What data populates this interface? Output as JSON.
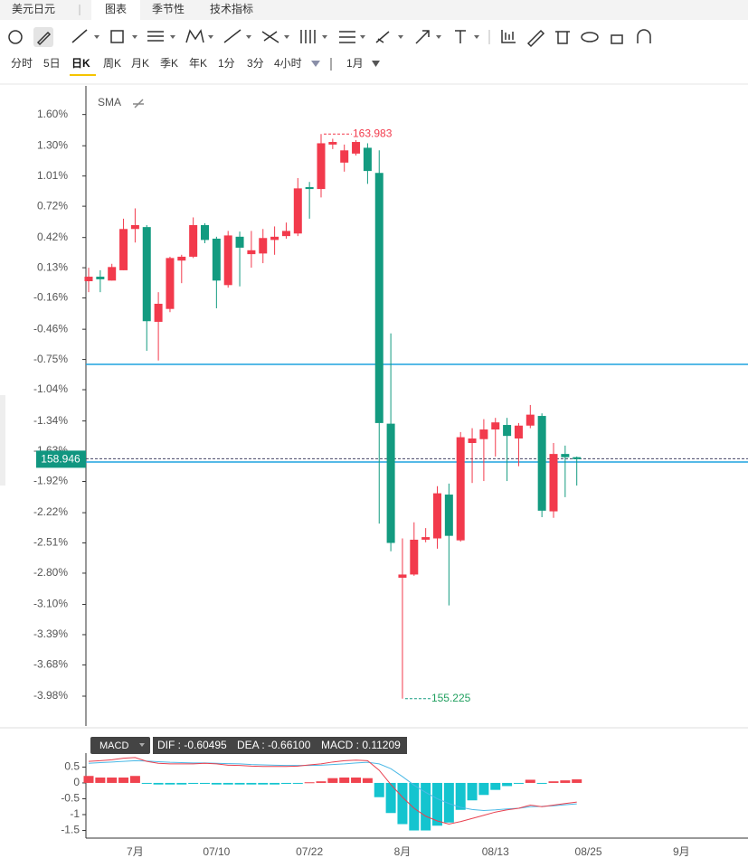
{
  "tabs": {
    "title": "美元日元",
    "items": [
      "图表",
      "季节性",
      "技术指标"
    ],
    "active": 0
  },
  "periods": {
    "items": [
      "分时",
      "5日",
      "日K",
      "周K",
      "月K",
      "季K",
      "年K",
      "1分",
      "3分",
      "4小时"
    ],
    "active": 2,
    "range": "1月"
  },
  "chart_data": [
    {
      "type": "candlestick",
      "indicator": "SMA",
      "categories": [
        null,
        null,
        null,
        null,
        "7月",
        null,
        null,
        null,
        null,
        null,
        null,
        "07/10",
        null,
        null,
        null,
        null,
        null,
        null,
        null,
        "07/22",
        null,
        null,
        null,
        null,
        null,
        null,
        null,
        "8月",
        null,
        null,
        null,
        null,
        null,
        null,
        null,
        "08/13",
        null,
        null,
        null,
        null,
        null,
        null,
        null,
        "08/25",
        null,
        null,
        null,
        null,
        null,
        null,
        null,
        "9月",
        null,
        null,
        null,
        null,
        null
      ],
      "open": [
        161.7,
        161.77,
        161.71,
        161.87,
        162.51,
        162.54,
        161.07,
        161.27,
        162.02,
        162.08,
        162.57,
        162.36,
        161.64,
        162.39,
        162.12,
        162.13,
        162.34,
        162.4,
        162.44,
        163.16,
        163.13,
        163.82,
        163.54,
        163.68,
        163.77,
        163.38,
        159.49,
        157.1,
        157.15,
        157.69,
        157.71,
        158.39,
        157.68,
        159.19,
        159.25,
        159.4,
        159.47,
        159.26,
        159.46,
        159.61,
        158.13,
        159.02,
        158.97,
        null,
        null,
        null,
        null,
        null,
        null,
        null,
        null,
        null,
        null,
        null,
        null,
        null,
        null
      ],
      "high": [
        161.91,
        161.87,
        161.97,
        162.67,
        162.83,
        162.57,
        161.53,
        162.08,
        162.11,
        162.69,
        162.6,
        162.39,
        162.48,
        162.47,
        162.48,
        162.51,
        162.55,
        162.61,
        163.3,
        163.24,
        163.983,
        163.91,
        163.82,
        163.89,
        163.84,
        163.73,
        160.89,
        157.71,
        157.96,
        157.87,
        158.52,
        158.56,
        159.36,
        159.42,
        159.56,
        159.58,
        159.58,
        159.5,
        159.78,
        159.65,
        159.19,
        159.15,
        158.98,
        null,
        null,
        null,
        null,
        null,
        null,
        null,
        null,
        null,
        null,
        null,
        null,
        null,
        null
      ],
      "low": [
        161.53,
        161.53,
        161.71,
        161.87,
        162.3,
        160.62,
        160.47,
        161.22,
        161.67,
        162.06,
        162.29,
        161.28,
        161.6,
        161.62,
        161.91,
        161.98,
        162.11,
        162.36,
        162.4,
        162.67,
        163.0,
        163.75,
        163.4,
        163.65,
        163.21,
        157.94,
        157.51,
        155.225,
        157.13,
        157.65,
        157.55,
        156.67,
        157.66,
        158.57,
        158.6,
        158.98,
        158.6,
        158.83,
        159.42,
        158.04,
        158.03,
        158.35,
        158.53,
        null,
        null,
        null,
        null,
        null,
        null,
        null,
        null,
        null,
        null,
        null,
        null,
        null,
        null
      ],
      "close": [
        161.77,
        161.73,
        161.92,
        162.51,
        162.57,
        161.08,
        161.35,
        162.06,
        162.08,
        162.57,
        162.34,
        161.71,
        162.41,
        162.22,
        162.18,
        162.37,
        162.39,
        162.48,
        163.14,
        163.13,
        163.84,
        163.86,
        163.73,
        163.86,
        163.41,
        159.5,
        157.64,
        157.15,
        157.69,
        157.73,
        158.41,
        157.75,
        159.28,
        159.26,
        159.4,
        159.51,
        159.3,
        159.46,
        159.63,
        158.14,
        159.02,
        158.97,
        158.94,
        null,
        null,
        null,
        null,
        null,
        null,
        null,
        null,
        null,
        null,
        null,
        null,
        null,
        null
      ],
      "up_color": "#f23a4c",
      "down_color": "#139b80",
      "ylim": [
        154.8,
        164.73
      ],
      "yticks": [
        {
          "value": 164.286,
          "label": "1.60%"
        },
        {
          "value": 163.801,
          "label": "1.30%"
        },
        {
          "value": 163.332,
          "label": "1.01%"
        },
        {
          "value": 162.863,
          "label": "0.72%"
        },
        {
          "value": 162.378,
          "label": "0.42%"
        },
        {
          "value": 161.909,
          "label": "0.13%"
        },
        {
          "value": 161.44,
          "label": "-0.16%"
        },
        {
          "value": 160.955,
          "label": "-0.46%"
        },
        {
          "value": 160.486,
          "label": "-0.75%"
        },
        {
          "value": 160.017,
          "label": "-1.04%"
        },
        {
          "value": 159.532,
          "label": "-1.34%"
        },
        {
          "value": 159.063,
          "label": "-1.63%"
        },
        {
          "value": 158.594,
          "label": "-1.92%"
        },
        {
          "value": 158.109,
          "label": "-2.22%"
        },
        {
          "value": 157.64,
          "label": "-2.51%"
        },
        {
          "value": 157.171,
          "label": "-2.80%"
        },
        {
          "value": 156.686,
          "label": "-3.10%"
        },
        {
          "value": 156.217,
          "label": "-3.39%"
        },
        {
          "value": 155.748,
          "label": "-3.68%"
        },
        {
          "value": 155.263,
          "label": "-3.98%"
        }
      ],
      "high_marker": 163.983,
      "low_marker": 155.225,
      "last_price": 158.946,
      "hlines": [
        160.41,
        158.896
      ],
      "hline_color": "#1ea4df"
    },
    {
      "type": "macd",
      "indicator": "MACD",
      "legend": [
        "DIF : -0.60495",
        "DEA : -0.66100",
        "MACD : 0.11209"
      ],
      "dif": {
        "color": "#e8404f",
        "values": [
          0.68,
          0.7,
          0.73,
          0.78,
          0.8,
          0.68,
          0.62,
          0.6,
          0.6,
          0.6,
          0.62,
          0.6,
          0.56,
          0.55,
          0.53,
          0.52,
          0.52,
          0.52,
          0.53,
          0.57,
          0.6,
          0.66,
          0.7,
          0.72,
          0.7,
          0.4,
          -0.05,
          -0.45,
          -0.8,
          -1.05,
          -1.2,
          -1.3,
          -1.22,
          -1.12,
          -1.02,
          -0.92,
          -0.85,
          -0.8,
          -0.7,
          -0.75,
          -0.7,
          -0.65,
          -0.60495,
          null,
          null,
          null,
          null,
          null,
          null,
          null,
          null,
          null,
          null,
          null,
          null,
          null,
          null
        ]
      },
      "dea": {
        "color": "#4cb9e6",
        "values": [
          0.62,
          0.64,
          0.66,
          0.68,
          0.7,
          0.69,
          0.67,
          0.65,
          0.64,
          0.63,
          0.63,
          0.62,
          0.61,
          0.6,
          0.58,
          0.57,
          0.56,
          0.55,
          0.55,
          0.55,
          0.56,
          0.58,
          0.6,
          0.63,
          0.65,
          0.6,
          0.45,
          0.2,
          -0.07,
          -0.3,
          -0.5,
          -0.65,
          -0.77,
          -0.84,
          -0.87,
          -0.85,
          -0.82,
          -0.8,
          -0.75,
          -0.74,
          -0.72,
          -0.69,
          -0.661,
          null,
          null,
          null,
          null,
          null,
          null,
          null,
          null,
          null,
          null,
          null,
          null,
          null,
          null
        ]
      },
      "histogram": [
        0.22,
        0.17,
        0.17,
        0.17,
        0.22,
        -0.02,
        -0.05,
        -0.05,
        -0.05,
        -0.03,
        -0.03,
        -0.05,
        -0.05,
        -0.05,
        -0.05,
        -0.05,
        -0.05,
        -0.03,
        -0.02,
        0.02,
        0.05,
        0.15,
        0.17,
        0.17,
        0.15,
        -0.45,
        -0.95,
        -1.3,
        -1.5,
        -1.5,
        -1.35,
        -1.25,
        -0.85,
        -0.55,
        -0.38,
        -0.22,
        -0.1,
        -0.02,
        0.1,
        -0.02,
        0.05,
        0.08,
        0.11209,
        null,
        null,
        null,
        null,
        null,
        null,
        null,
        null,
        null,
        null,
        null,
        null,
        null,
        null
      ],
      "pos_color": "#f0434f",
      "neg_color": "#14c4cf",
      "ylim": [
        -1.77,
        0.94
      ],
      "yticks": [
        0.5,
        0,
        -0.5,
        -1,
        -1.5
      ]
    }
  ]
}
